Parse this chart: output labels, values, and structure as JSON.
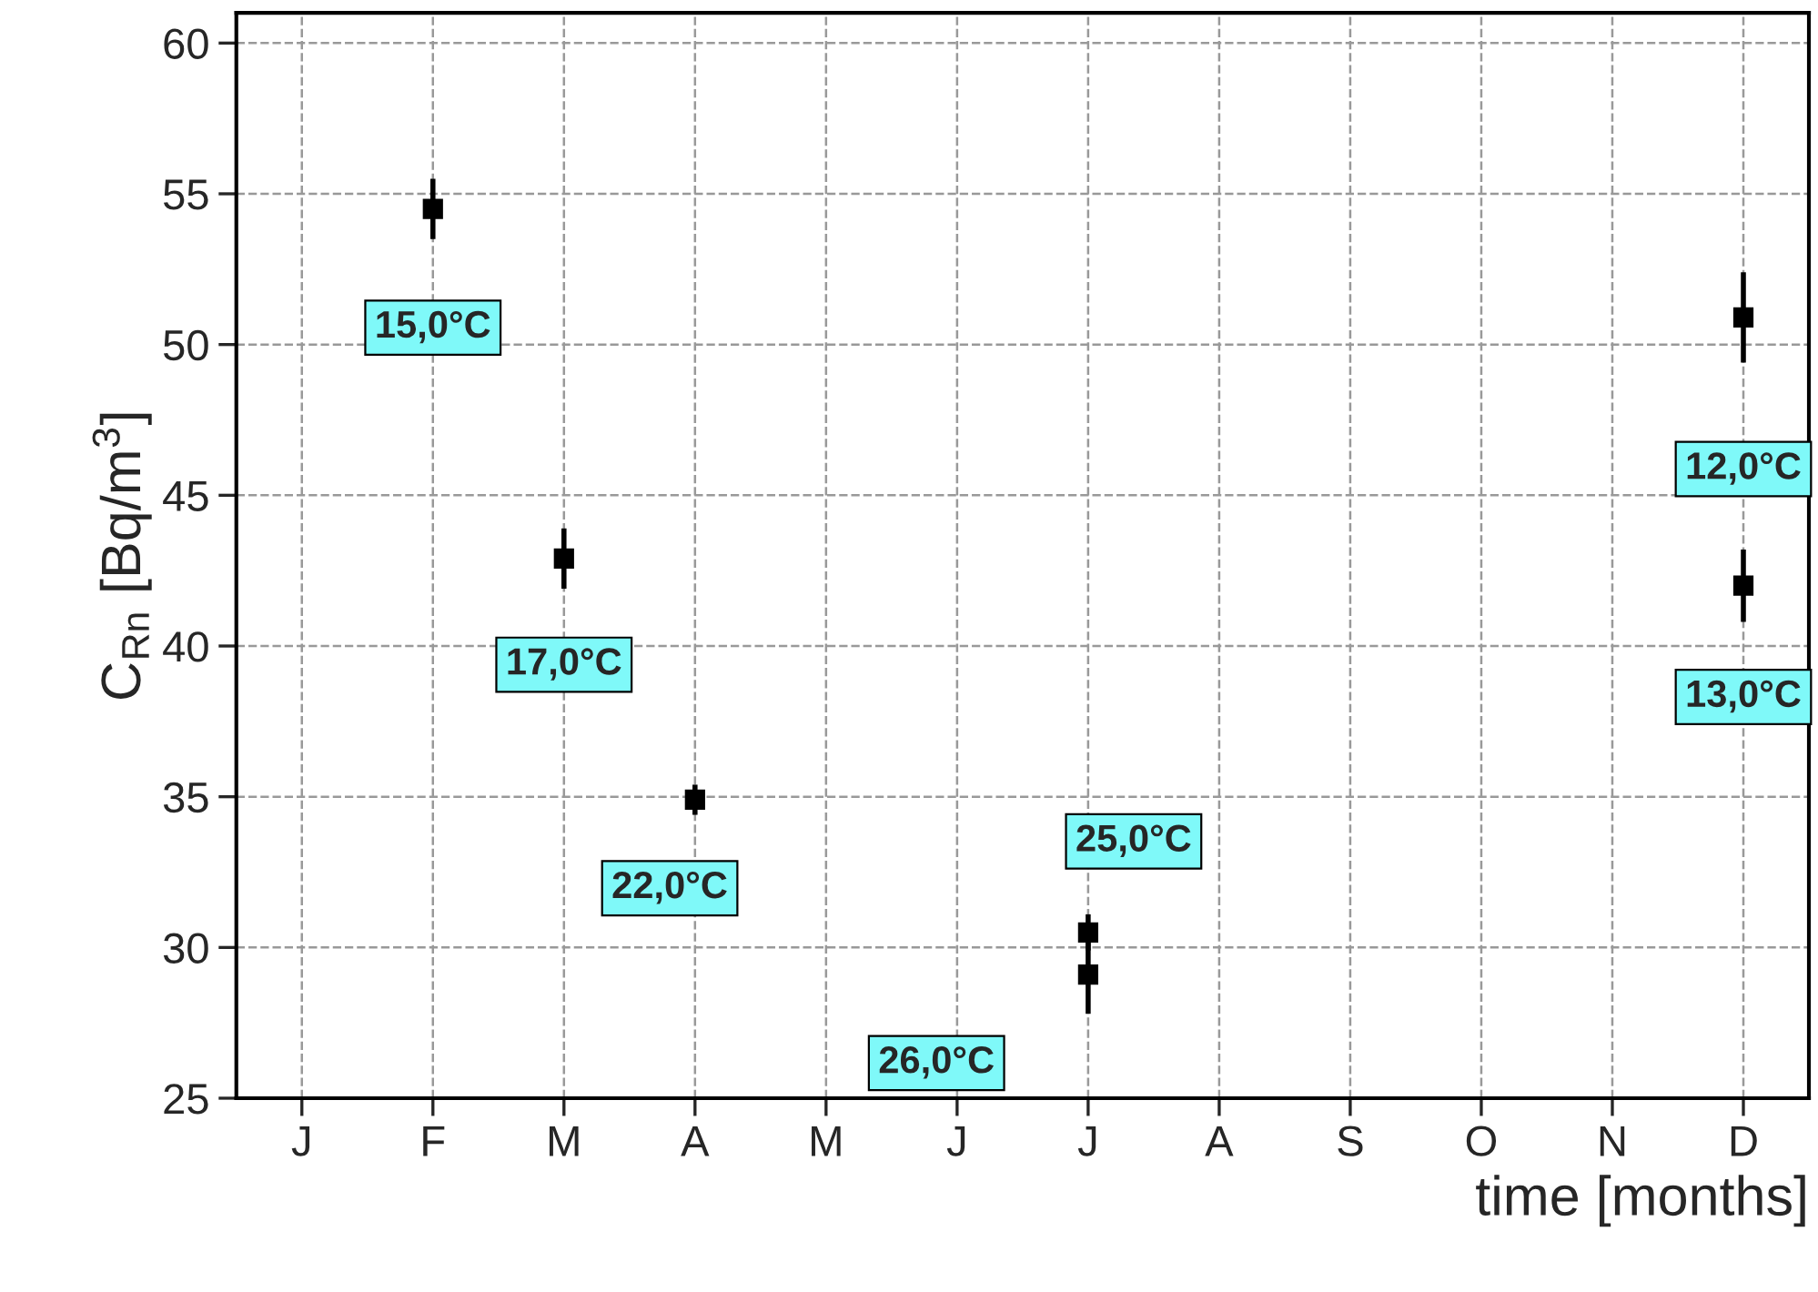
{
  "chart_data": {
    "type": "scatter",
    "xlabel": "time [months]",
    "ylabel": "C$_{Rn}$ [Bq/m$^{3}$]",
    "categories": [
      "J",
      "F",
      "M",
      "A",
      "M",
      "J",
      "J",
      "A",
      "S",
      "O",
      "N",
      "D"
    ],
    "ylim": [
      25,
      61
    ],
    "yticks": [
      25,
      30,
      35,
      40,
      45,
      50,
      55,
      60
    ],
    "grid": true,
    "marker": "square",
    "series": [
      {
        "color": "#000000",
        "values": [
          null,
          54.5,
          42.9,
          34.9,
          null,
          null,
          30.5,
          null,
          null,
          null,
          null,
          50.9
        ],
        "errors": [
          null,
          1.0,
          1.0,
          0.5,
          null,
          null,
          0.6,
          null,
          null,
          null,
          null,
          1.5
        ]
      },
      {
        "color": "#000000",
        "values": [
          null,
          null,
          null,
          null,
          null,
          null,
          29.1,
          null,
          null,
          null,
          null,
          42.0
        ],
        "errors": [
          null,
          null,
          null,
          null,
          null,
          null,
          1.3,
          null,
          null,
          null,
          null,
          1.2
        ]
      }
    ],
    "annotations": [
      "15,0°C",
      "17,0°C",
      "22,0°C",
      "25,0°C",
      "26,0°C",
      "12,0°C",
      "13,0°C"
    ]
  }
}
